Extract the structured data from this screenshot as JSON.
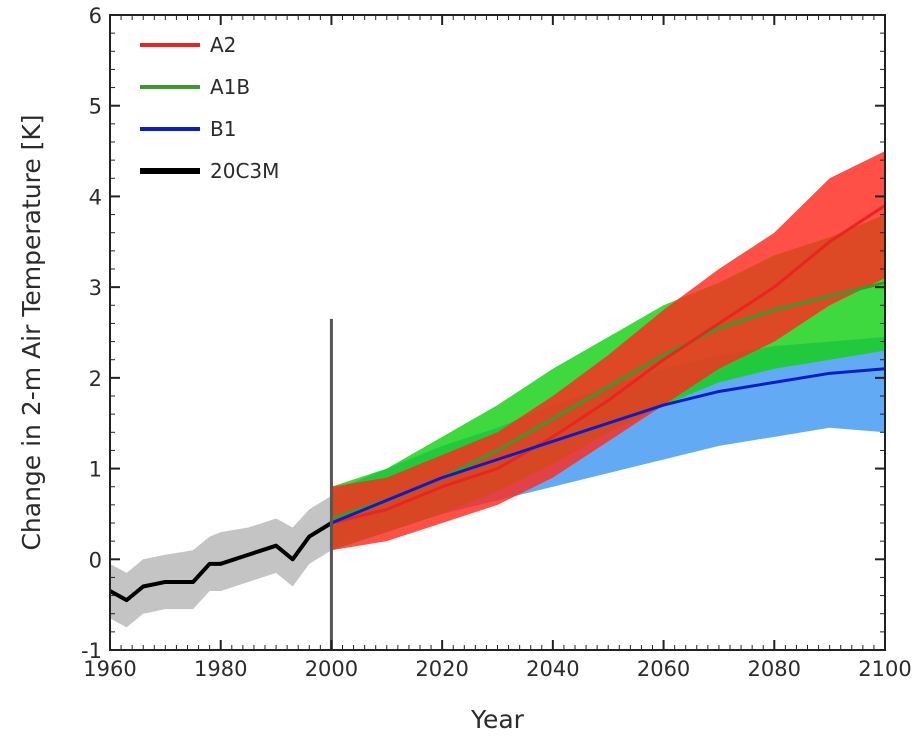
{
  "chart_data": {
    "type": "line",
    "title": "",
    "xlabel": "Year",
    "ylabel": "Change in 2-m Air Temperature [K]",
    "xlim": [
      1960,
      2100
    ],
    "ylim": [
      -1,
      6
    ],
    "x_ticks": [
      1960,
      1980,
      2000,
      2020,
      2040,
      2060,
      2080,
      2100
    ],
    "y_ticks": [
      -1,
      0,
      1,
      2,
      3,
      4,
      5,
      6
    ],
    "grid": false,
    "legend_position": "top-left",
    "divider_year": 2000,
    "series": [
      {
        "name": "A2",
        "color": "#e8251e",
        "band_color": "#ff2a1f",
        "x": [
          2000,
          2010,
          2020,
          2030,
          2040,
          2050,
          2060,
          2070,
          2080,
          2090,
          2100
        ],
        "mean": [
          0.4,
          0.55,
          0.8,
          1.0,
          1.35,
          1.75,
          2.2,
          2.6,
          3.0,
          3.5,
          3.9
        ],
        "lower": [
          0.1,
          0.2,
          0.4,
          0.6,
          0.9,
          1.3,
          1.7,
          2.1,
          2.4,
          2.8,
          3.1
        ],
        "upper": [
          0.8,
          0.9,
          1.15,
          1.4,
          1.8,
          2.25,
          2.75,
          3.2,
          3.6,
          4.2,
          4.5
        ]
      },
      {
        "name": "A1B",
        "color": "#3b9a2e",
        "band_color": "#14d114",
        "x": [
          2000,
          2010,
          2020,
          2030,
          2040,
          2050,
          2060,
          2070,
          2080,
          2090,
          2100
        ],
        "mean": [
          0.45,
          0.65,
          0.9,
          1.2,
          1.55,
          1.9,
          2.25,
          2.55,
          2.75,
          2.9,
          3.05
        ],
        "lower": [
          0.1,
          0.3,
          0.5,
          0.75,
          1.05,
          1.4,
          1.7,
          1.95,
          2.1,
          2.2,
          2.3
        ],
        "upper": [
          0.8,
          1.0,
          1.35,
          1.7,
          2.1,
          2.45,
          2.8,
          3.05,
          3.35,
          3.55,
          3.8
        ]
      },
      {
        "name": "B1",
        "color": "#0a1ec8",
        "band_color": "#3f97f0",
        "x": [
          2000,
          2010,
          2020,
          2030,
          2040,
          2050,
          2060,
          2070,
          2080,
          2090,
          2100
        ],
        "mean": [
          0.4,
          0.65,
          0.9,
          1.1,
          1.3,
          1.5,
          1.7,
          1.85,
          1.95,
          2.05,
          2.1
        ],
        "lower": [
          0.1,
          0.3,
          0.5,
          0.65,
          0.8,
          0.95,
          1.1,
          1.25,
          1.35,
          1.45,
          1.4
        ],
        "upper": [
          0.75,
          1.0,
          1.25,
          1.45,
          1.7,
          1.9,
          2.1,
          2.25,
          2.35,
          2.4,
          2.45
        ]
      },
      {
        "name": "20C3M",
        "color": "#000000",
        "band_color": "#c4c4c4",
        "x": [
          1960,
          1963,
          1966,
          1970,
          1975,
          1978,
          1980,
          1985,
          1990,
          1993,
          1996,
          2000
        ],
        "mean": [
          -0.35,
          -0.45,
          -0.3,
          -0.25,
          -0.25,
          -0.05,
          -0.05,
          0.05,
          0.15,
          0.0,
          0.25,
          0.4
        ],
        "lower": [
          -0.65,
          -0.75,
          -0.6,
          -0.55,
          -0.55,
          -0.35,
          -0.35,
          -0.25,
          -0.15,
          -0.3,
          -0.05,
          0.1
        ],
        "upper": [
          -0.05,
          -0.15,
          0.0,
          0.05,
          0.1,
          0.25,
          0.3,
          0.35,
          0.45,
          0.35,
          0.55,
          0.7
        ]
      }
    ]
  }
}
